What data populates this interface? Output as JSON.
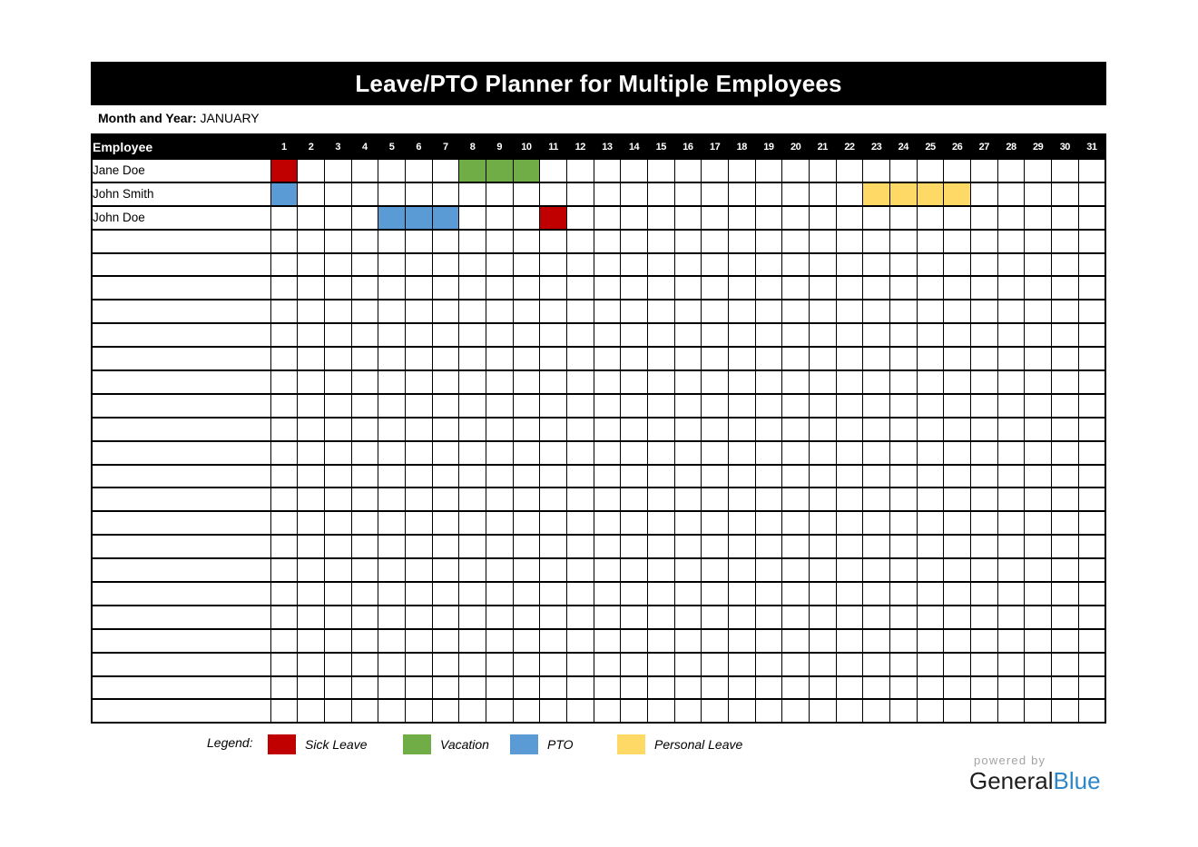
{
  "title": "Leave/PTO Planner for Multiple Employees",
  "month": {
    "label": "Month and Year:",
    "value": "JANUARY"
  },
  "table": {
    "employee_header": "Employee",
    "days": [
      1,
      2,
      3,
      4,
      5,
      6,
      7,
      8,
      9,
      10,
      11,
      12,
      13,
      14,
      15,
      16,
      17,
      18,
      19,
      20,
      21,
      22,
      23,
      24,
      25,
      26,
      27,
      28,
      29,
      30,
      31
    ],
    "employees": [
      {
        "name": "Jane Doe",
        "leaves": [
          {
            "day": 1,
            "type": "sick"
          },
          {
            "day": 8,
            "type": "vacation"
          },
          {
            "day": 9,
            "type": "vacation"
          },
          {
            "day": 10,
            "type": "vacation"
          }
        ]
      },
      {
        "name": "John Smith",
        "leaves": [
          {
            "day": 1,
            "type": "pto"
          },
          {
            "day": 23,
            "type": "personal"
          },
          {
            "day": 24,
            "type": "personal"
          },
          {
            "day": 25,
            "type": "personal"
          },
          {
            "day": 26,
            "type": "personal"
          }
        ]
      },
      {
        "name": "John Doe",
        "leaves": [
          {
            "day": 5,
            "type": "pto"
          },
          {
            "day": 6,
            "type": "pto"
          },
          {
            "day": 7,
            "type": "pto"
          },
          {
            "day": 11,
            "type": "sick"
          }
        ]
      }
    ],
    "empty_row_count": 21
  },
  "legend": {
    "label": "Legend:",
    "items": [
      {
        "type": "sick",
        "label": "Sick Leave",
        "color": "#c00000"
      },
      {
        "type": "vacation",
        "label": "Vacation",
        "color": "#70ad47"
      },
      {
        "type": "pto",
        "label": "PTO",
        "color": "#5b9bd5"
      },
      {
        "type": "personal",
        "label": "Personal Leave",
        "color": "#ffd966"
      }
    ]
  },
  "footer": {
    "powered_by": "powered by",
    "brand_part1": "General",
    "brand_part2": "Blue",
    "brand_blue_color": "#2e86c8"
  }
}
